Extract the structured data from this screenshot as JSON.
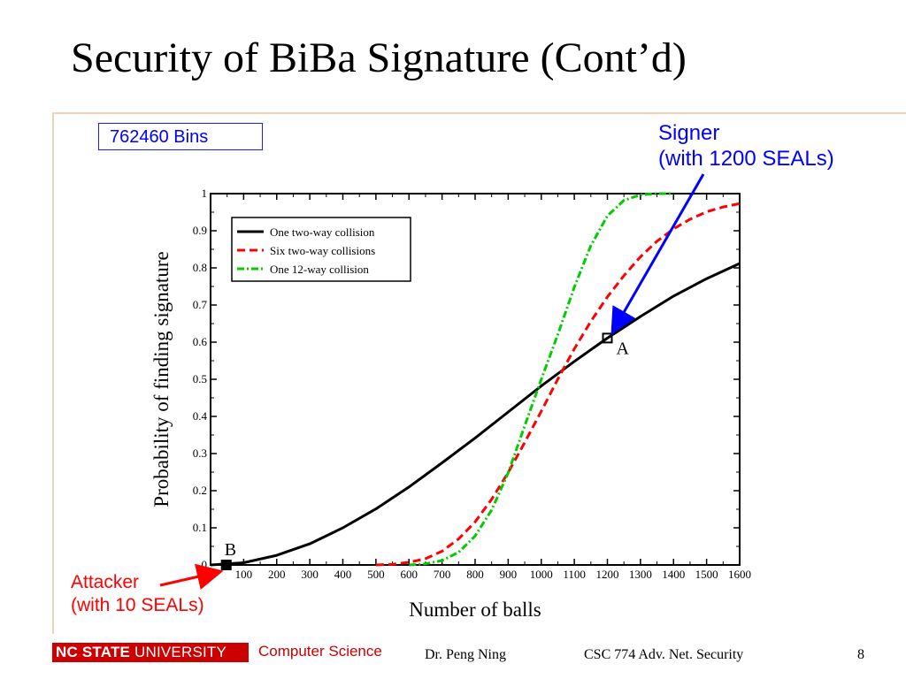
{
  "slide": {
    "title": "Security of BiBa Signature (Cont’d)",
    "bins_label": "762460 Bins",
    "signer_label_line1": "Signer",
    "signer_label_line2": "(with 1200 SEALs)",
    "attacker_label_line1": "Attacker",
    "attacker_label_line2": "(with 10 SEALs)",
    "accent_color": "#0000ff",
    "attacker_color": "#ff0000"
  },
  "footer": {
    "logo_bold": "NC STATE",
    "logo_thin": "UNIVERSITY",
    "department": "Computer Science",
    "author": "Dr. Peng Ning",
    "course": "CSC 774 Adv. Net. Security",
    "page_number": "8",
    "brand_color": "#cc0000"
  },
  "chart_data": {
    "type": "line",
    "xlabel": "Number of balls",
    "ylabel": "Probability of finding signature",
    "xlim": [
      0,
      1600
    ],
    "ylim": [
      0,
      1
    ],
    "xticks": [
      100,
      200,
      300,
      400,
      500,
      600,
      700,
      800,
      900,
      1000,
      1100,
      1200,
      1300,
      1400,
      1500,
      1600
    ],
    "xtick_labels": [
      "100",
      "200",
      "300",
      "400",
      "500",
      "600",
      "700",
      "800",
      "900",
      "1000",
      "1100",
      "1200",
      "1300",
      "1400",
      "1500",
      "1600"
    ],
    "yticks": [
      0,
      0.1,
      0.2,
      0.3,
      0.4,
      0.5,
      0.6,
      0.7,
      0.8,
      0.9,
      1
    ],
    "ytick_labels": [
      "0",
      "0.1",
      "0.2",
      "0.3",
      "0.4",
      "0.5",
      "0.6",
      "0.7",
      "0.8",
      "0.9",
      "1"
    ],
    "grid": false,
    "legend_position": "top-left",
    "series": [
      {
        "name": "One two-way collision",
        "color": "#000000",
        "dash": "solid",
        "x": [
          0,
          100,
          200,
          300,
          400,
          500,
          600,
          700,
          800,
          900,
          1000,
          1100,
          1200,
          1300,
          1400,
          1500,
          1600
        ],
        "y": [
          0,
          0.006,
          0.026,
          0.057,
          0.1,
          0.151,
          0.21,
          0.275,
          0.342,
          0.412,
          0.482,
          0.548,
          0.611,
          0.669,
          0.724,
          0.771,
          0.812
        ]
      },
      {
        "name": "Six two-way collisions",
        "color": "#ff0000",
        "dash": "dashed",
        "x": [
          500,
          550,
          600,
          650,
          700,
          750,
          800,
          850,
          900,
          950,
          1000,
          1050,
          1100,
          1150,
          1200,
          1250,
          1300,
          1350,
          1400,
          1450,
          1500,
          1550,
          1600
        ],
        "y": [
          0.0,
          0.002,
          0.007,
          0.017,
          0.037,
          0.07,
          0.116,
          0.177,
          0.249,
          0.33,
          0.414,
          0.5,
          0.582,
          0.656,
          0.722,
          0.779,
          0.83,
          0.872,
          0.905,
          0.931,
          0.951,
          0.964,
          0.973
        ]
      },
      {
        "name": "One 12-way collision",
        "color": "#00cc00",
        "dash": "dashdot",
        "x": [
          600,
          650,
          700,
          750,
          800,
          850,
          900,
          950,
          1000,
          1050,
          1100,
          1150,
          1200,
          1250,
          1300,
          1350,
          1400
        ],
        "y": [
          0.0,
          0.003,
          0.012,
          0.034,
          0.078,
          0.148,
          0.248,
          0.375,
          0.5,
          0.62,
          0.748,
          0.86,
          0.94,
          0.982,
          0.997,
          1.0,
          1.0
        ]
      }
    ],
    "annotations": [
      {
        "label": "A",
        "x": 1200,
        "y": 0.611
      },
      {
        "label": "B",
        "x": 10,
        "y": 0
      }
    ]
  }
}
